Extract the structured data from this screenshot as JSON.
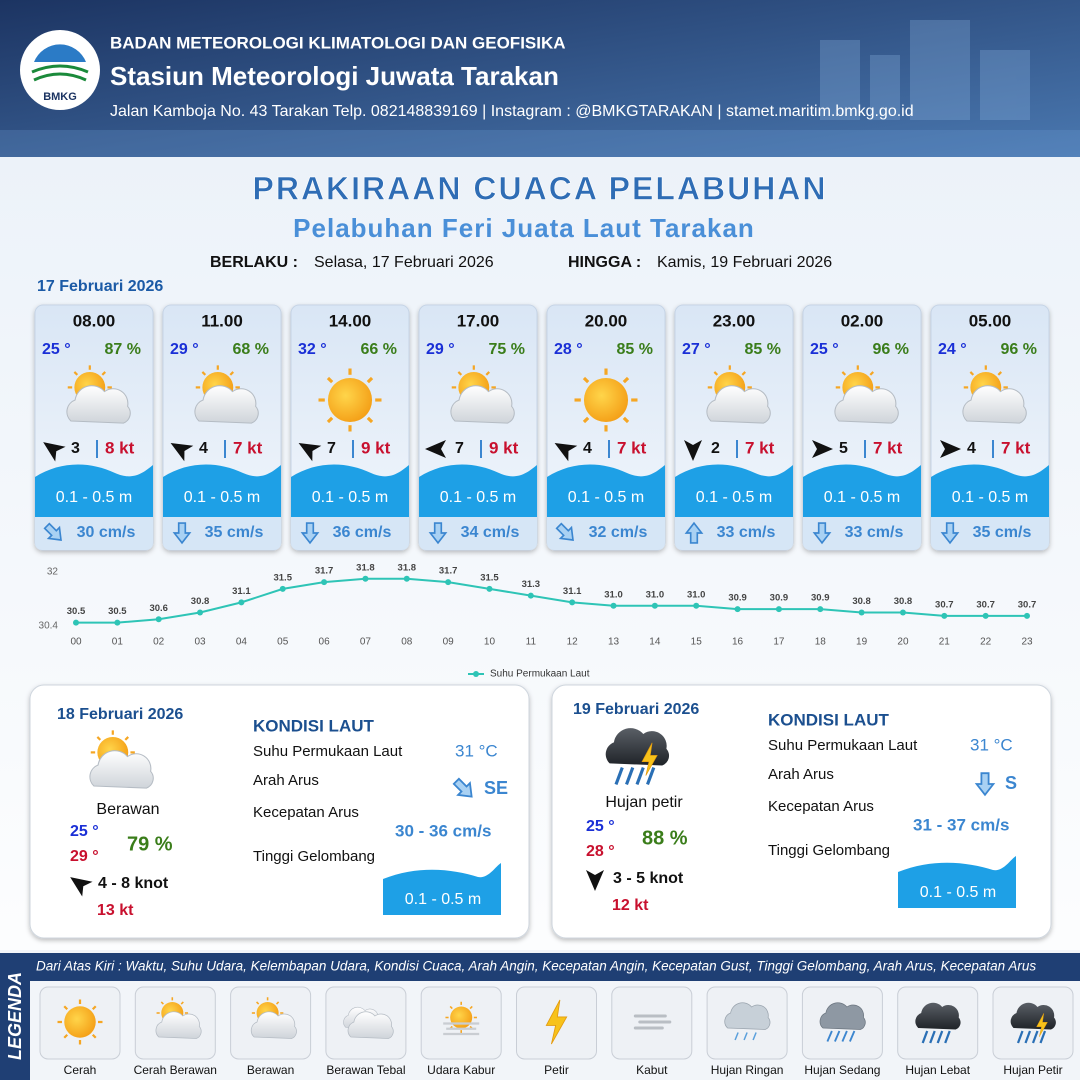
{
  "header": {
    "logo_text": "BMKG",
    "agency": "BADAN METEOROLOGI KLIMATOLOGI DAN GEOFISIKA",
    "station": "Stasiun Meteorologi Juwata Tarakan",
    "address": "Jalan Kamboja No. 43 Tarakan  Telp. 082148839169 | Instagram : @BMKGTARAKAN | stamet.maritim.bmkg.go.id"
  },
  "title": "PRAKIRAAN CUACA PELABUHAN",
  "subtitle": "Pelabuhan Feri Juata Laut Tarakan",
  "validity": {
    "from_label": "BERLAKU :",
    "from": "Selasa, 17 Februari 2026",
    "to_label": "HINGGA :",
    "to": "Kamis, 19 Februari 2026"
  },
  "day1": {
    "date": "17 Februari 2026",
    "forecasts": [
      {
        "time": "08.00",
        "temp": "25 °",
        "humidity": "87 %",
        "wind": "3",
        "gust": "8 kt",
        "wave": "0.1 - 0.5 m",
        "current": "30 cm/s"
      },
      {
        "time": "11.00",
        "temp": "29 °",
        "humidity": "68 %",
        "wind": "4",
        "gust": "7 kt",
        "wave": "0.1 - 0.5 m",
        "current": "35 cm/s"
      },
      {
        "time": "14.00",
        "temp": "32 °",
        "humidity": "66 %",
        "wind": "7",
        "gust": "9 kt",
        "wave": "0.1 - 0.5 m",
        "current": "36 cm/s"
      },
      {
        "time": "17.00",
        "temp": "29 °",
        "humidity": "75 %",
        "wind": "7",
        "gust": "9 kt",
        "wave": "0.1 - 0.5 m",
        "current": "34 cm/s"
      },
      {
        "time": "20.00",
        "temp": "28 °",
        "humidity": "85 %",
        "wind": "4",
        "gust": "7 kt",
        "wave": "0.1 - 0.5 m",
        "current": "32 cm/s"
      },
      {
        "time": "23.00",
        "temp": "27 °",
        "humidity": "85 %",
        "wind": "2",
        "gust": "7 kt",
        "wave": "0.1 - 0.5 m",
        "current": "33 cm/s"
      },
      {
        "time": "02.00",
        "temp": "25 °",
        "humidity": "96 %",
        "wind": "5",
        "gust": "7 kt",
        "wave": "0.1 - 0.5 m",
        "current": "33 cm/s"
      },
      {
        "time": "05.00",
        "temp": "24 °",
        "humidity": "96 %",
        "wind": "4",
        "gust": "7 kt",
        "wave": "0.1 - 0.5 m",
        "current": "35 cm/s"
      }
    ]
  },
  "chart_data": {
    "type": "line",
    "categories": [
      "00",
      "01",
      "02",
      "03",
      "04",
      "05",
      "06",
      "07",
      "08",
      "09",
      "10",
      "11",
      "12",
      "13",
      "14",
      "15",
      "16",
      "17",
      "18",
      "19",
      "20",
      "21",
      "22",
      "23"
    ],
    "series": [
      {
        "name": "Suhu Permukaan Laut",
        "color": "#2ec4b6",
        "values": [
          30.5,
          30.5,
          30.6,
          30.8,
          31.1,
          31.5,
          31.7,
          31.8,
          31.8,
          31.7,
          31.5,
          31.3,
          31.1,
          31.0,
          31.0,
          31.0,
          30.9,
          30.9,
          30.9,
          30.8,
          30.8,
          30.7,
          30.7,
          30.7
        ],
        "value_labels": [
          "30.5",
          "30.5",
          "30.6",
          "30.8",
          "31.1",
          "31.5",
          "31.7",
          "31.8",
          "31.8",
          "31.7",
          "31.5",
          "31.3",
          "31.1",
          "31.0",
          "31.0",
          "31.0",
          "30.9",
          "30.9",
          "30.9",
          "30.8",
          "30.8",
          "30.7",
          "30.7",
          "30.7"
        ]
      }
    ],
    "ylim": [
      30.4,
      32
    ],
    "yticks": [
      30.4,
      32
    ],
    "grid": false,
    "legend": "bottom"
  },
  "day2": {
    "date": "18 Februari 2026",
    "condition": "Berawan",
    "temp_min": "25 °",
    "temp_max": "29 °",
    "humidity": "79 %",
    "wind": "4  - 8 knot",
    "gust": "13 kt",
    "sea_heading": "KONDISI LAUT",
    "sst_label": "Suhu Permukaan Laut",
    "sst": "31 °C",
    "current_dir_label": "Arah Arus",
    "current_dir": "SE",
    "current_speed_label": "Kecepatan Arus",
    "current_speed": "30 - 36 cm/s",
    "wave_label": "Tinggi Gelombang",
    "wave": "0.1 - 0.5 m"
  },
  "day3": {
    "date": "19 Februari 2026",
    "condition": "Hujan petir",
    "temp_min": "25 °",
    "temp_max": "28 °",
    "humidity": "88 %",
    "wind": "3  - 5 knot",
    "gust": "12 kt",
    "sea_heading": "KONDISI LAUT",
    "sst_label": "Suhu Permukaan Laut",
    "sst": "31 °C",
    "current_dir_label": "Arah Arus",
    "current_dir": "S",
    "current_speed_label": "Kecepatan Arus",
    "current_speed": "31 - 37 cm/s",
    "wave_label": "Tinggi Gelombang",
    "wave": "0.1 - 0.5 m"
  },
  "legend": {
    "title": "LEGENDA",
    "note": "Dari Atas Kiri : Waktu, Suhu Udara, Kelembapan Udara, Kondisi Cuaca, Arah Angin, Kecepatan Angin, Kecepatan Gust, Tinggi Gelombang, Arah Arus, Kecepatan Arus",
    "items": [
      "Cerah",
      "Cerah Berawan",
      "Berawan",
      "Berawan Tebal",
      "Udara Kabur",
      "Petir",
      "Kabut",
      "Hujan Ringan",
      "Hujan Sedang",
      "Hujan Lebat",
      "Hujan Petir"
    ]
  }
}
